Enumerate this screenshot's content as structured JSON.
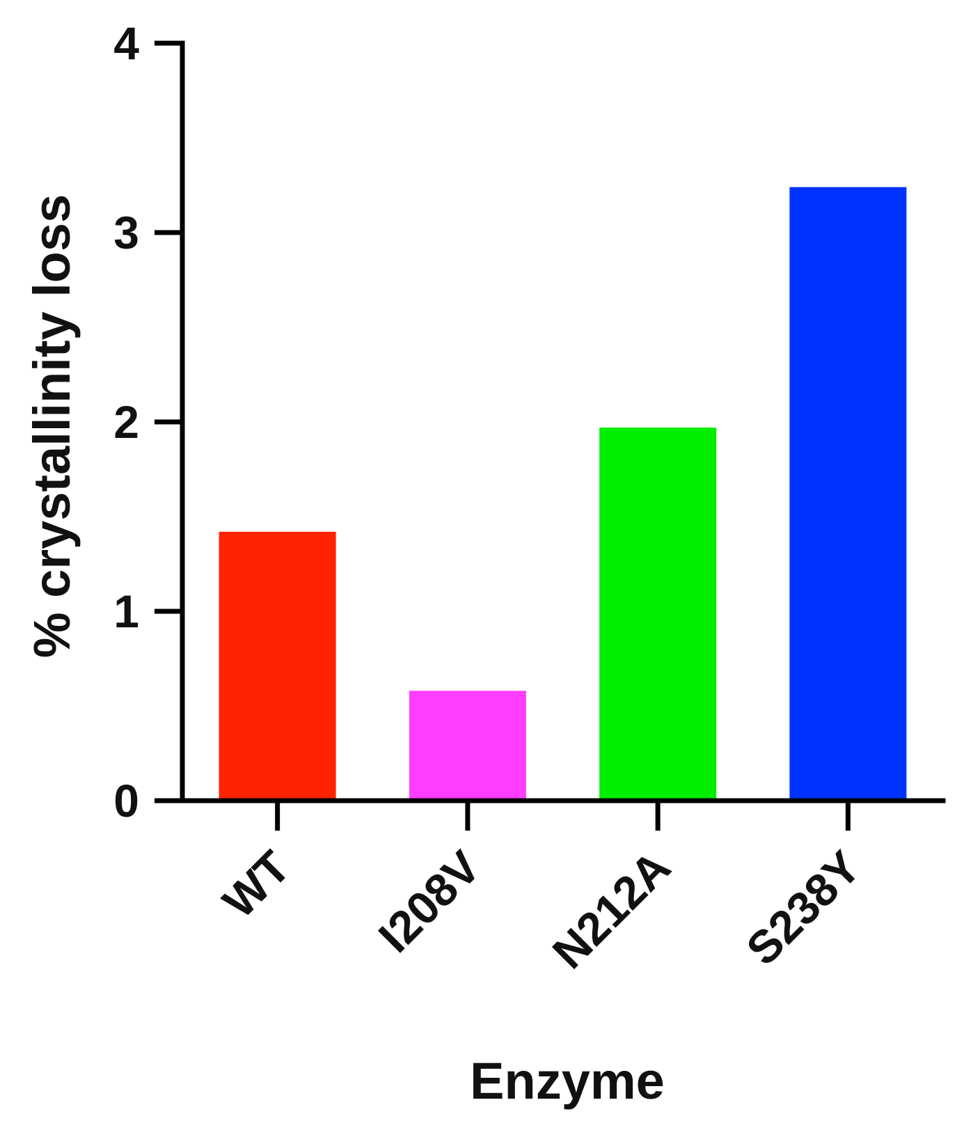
{
  "chart_data": {
    "type": "bar",
    "categories": [
      "WT",
      "I208V",
      "N212A",
      "S238Y"
    ],
    "values": [
      1.42,
      0.58,
      1.97,
      3.24
    ],
    "colors": [
      "#ff2200",
      "#ff3dff",
      "#00ee00",
      "#0033ff"
    ],
    "xlabel": "Enzyme",
    "ylabel": "% crystallinity loss",
    "ylim": [
      0,
      4
    ],
    "yticks": [
      "0",
      "1",
      "2",
      "3",
      "4"
    ],
    "grid": false,
    "legend": "none"
  }
}
